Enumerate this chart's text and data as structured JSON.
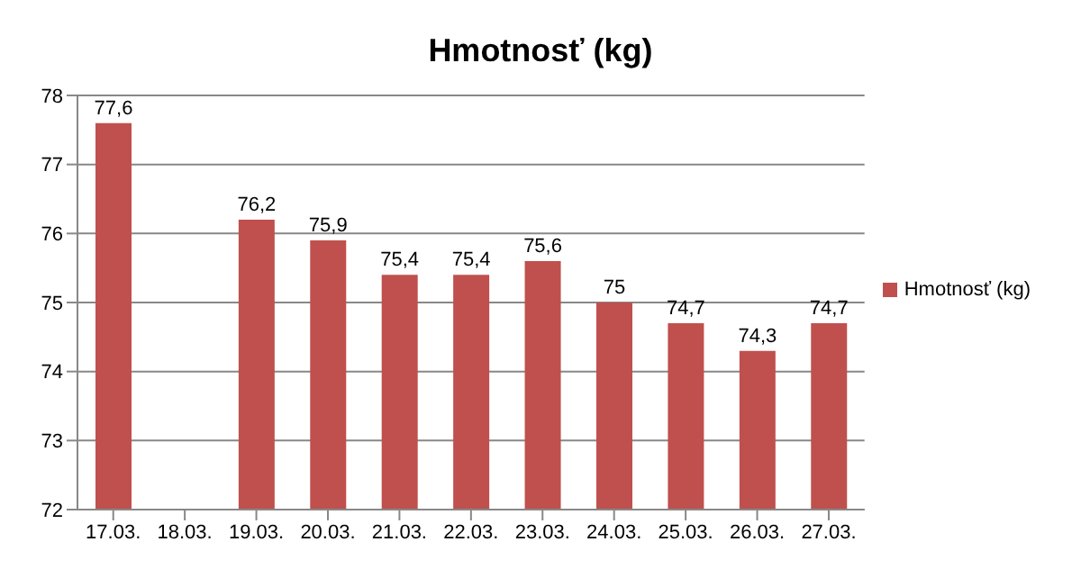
{
  "chart_data": {
    "type": "bar",
    "title": "Hmotnosť (kg)",
    "categories": [
      "17.03.",
      "18.03.",
      "19.03.",
      "20.03.",
      "21.03.",
      "22.03.",
      "23.03.",
      "24.03.",
      "25.03.",
      "26.03.",
      "27.03."
    ],
    "series": [
      {
        "name": "Hmotnosť (kg)",
        "color": "#c0504d",
        "values": [
          77.6,
          null,
          76.2,
          75.9,
          75.4,
          75.4,
          75.6,
          75,
          74.7,
          74.3,
          74.7
        ],
        "value_labels": [
          "77,6",
          null,
          "76,2",
          "75,9",
          "75,4",
          "75,4",
          "75,6",
          "75",
          "74,7",
          "74,3",
          "74,7"
        ]
      }
    ],
    "ylim": [
      72,
      78
    ],
    "yticks": [
      72,
      73,
      74,
      75,
      76,
      77,
      78
    ],
    "grid": "y",
    "legend": "right"
  }
}
